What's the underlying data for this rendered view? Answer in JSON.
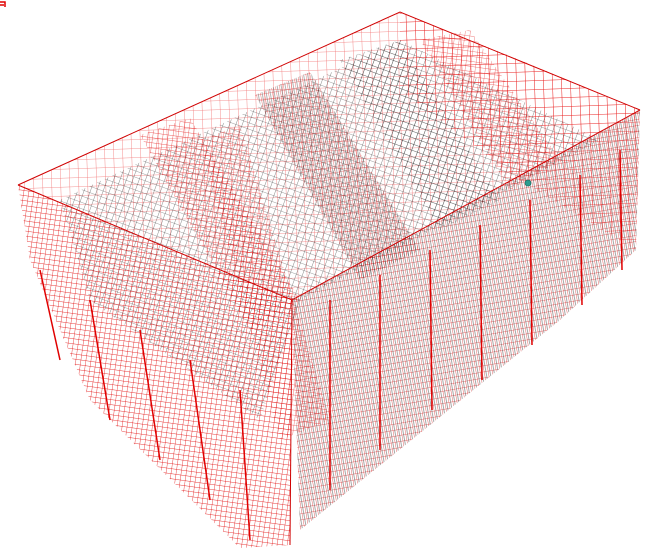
{
  "viewer": {
    "background_color": "#ffffff",
    "model_name": "",
    "view_mode": "wireframe",
    "projection": "isometric"
  },
  "model": {
    "type": "structural-frame-mesh",
    "exterior_mesh_color": "#ff0000",
    "interior_mesh_color": "#000000",
    "node_marker_color": "#2a9d8f",
    "corner_glyph_color": "#e00000"
  }
}
